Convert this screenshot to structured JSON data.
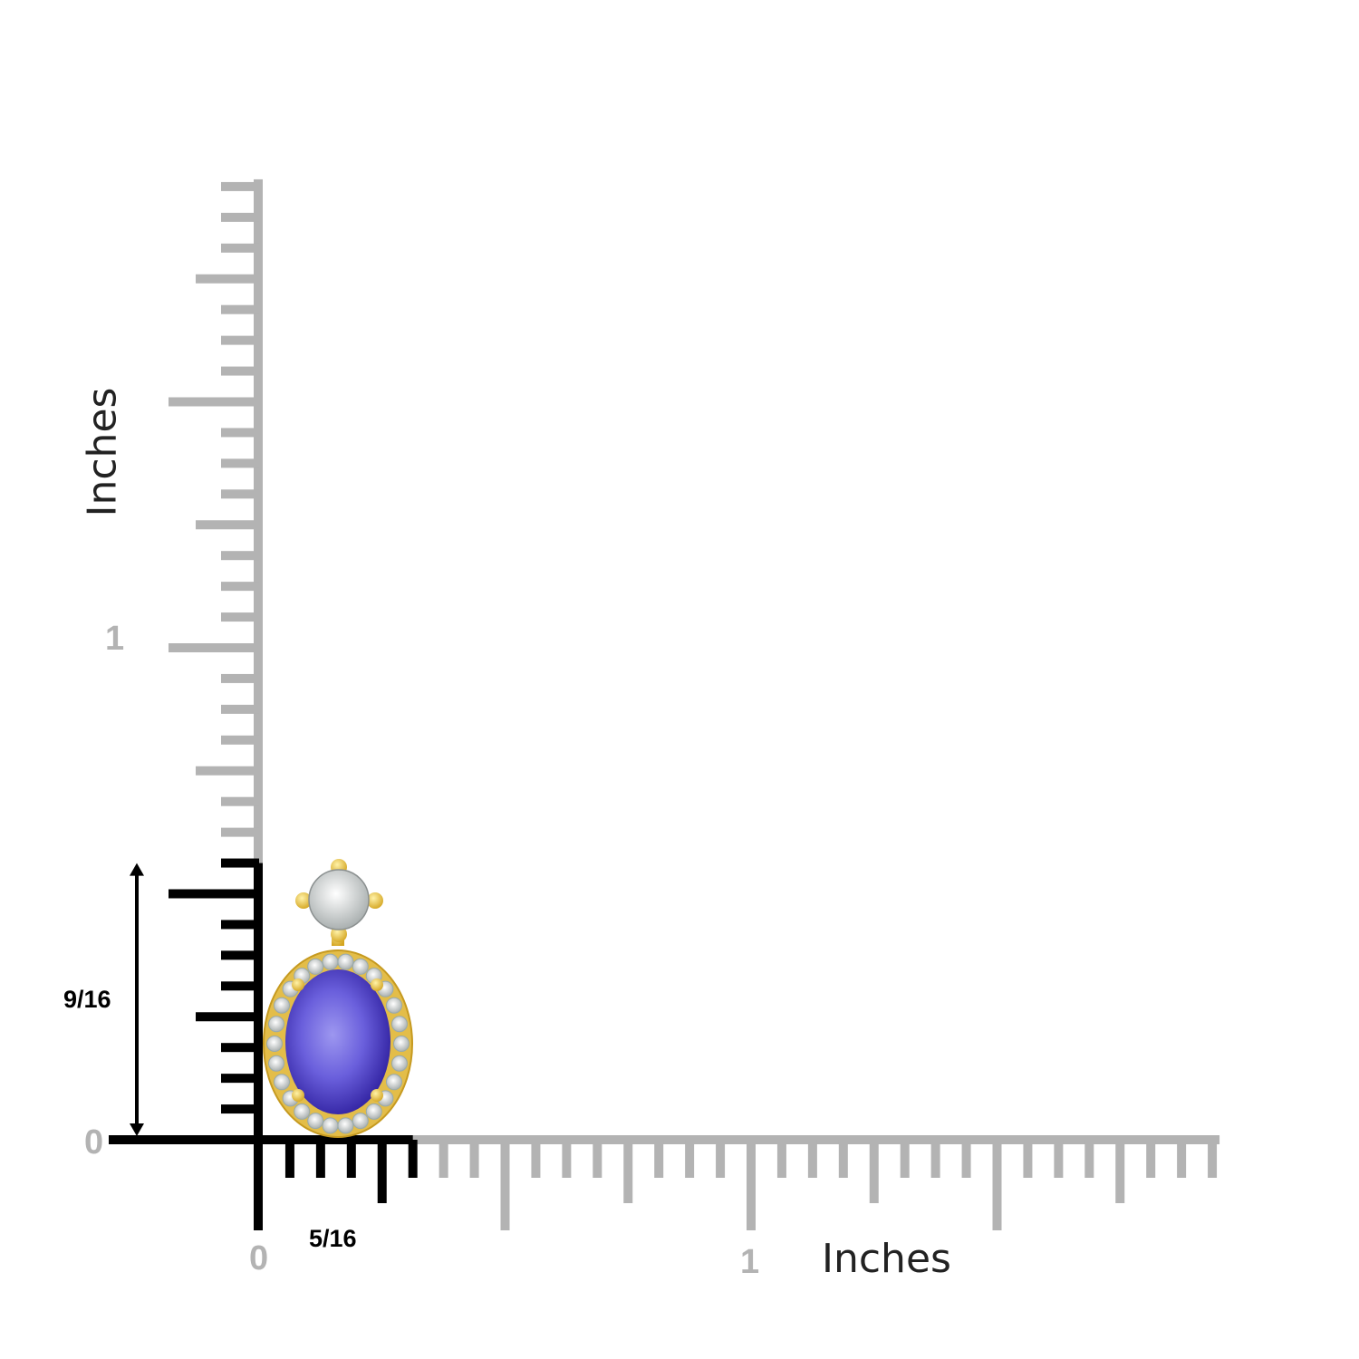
{
  "rulers": {
    "unit_label_vertical": "Inches",
    "unit_label_horizontal": "Inches",
    "vertical_tick_labels": [
      "0",
      "1"
    ],
    "horizontal_tick_labels": [
      "0",
      "1"
    ],
    "tick_step": "1/16",
    "vertical_extent_in": 1.9375,
    "horizontal_extent_in": 1.9375,
    "ruler_color": "#b3b3b3",
    "highlight_color": "#000000"
  },
  "dimensions": {
    "height": {
      "label": "9/16",
      "value_in": 0.5625
    },
    "width": {
      "label": "5/16",
      "value_in": 0.3125
    }
  },
  "product": {
    "center_stone_color": "#5a4fd0",
    "metal_color": "#e8c34a"
  }
}
